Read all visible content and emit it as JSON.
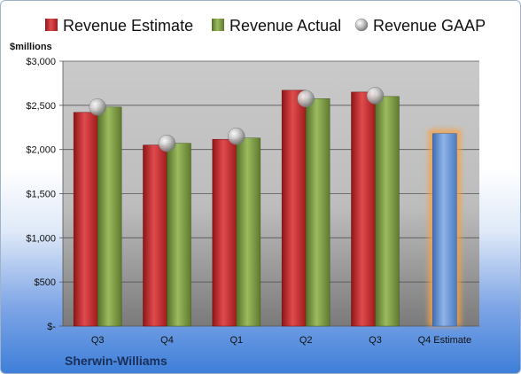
{
  "chart_data": {
    "type": "bar",
    "title": "",
    "company": "Sherwin-Williams",
    "ylabel": "$millions",
    "ylim": [
      0,
      3000
    ],
    "y_ticks": [
      0,
      500,
      1000,
      1500,
      2000,
      2500,
      3000
    ],
    "y_tick_labels": [
      "$-",
      "$500",
      "$1,000",
      "$1,500",
      "$2,000",
      "$2,500",
      "$3,000"
    ],
    "categories": [
      "Q3",
      "Q4",
      "Q1",
      "Q2",
      "Q3",
      "Q4 Estimate"
    ],
    "grid": true,
    "legend_placement": "top",
    "series": [
      {
        "name": "Revenue Estimate",
        "kind": "bar",
        "color": "#c0282a",
        "values": [
          2420,
          2050,
          2115,
          2670,
          2650,
          null
        ]
      },
      {
        "name": "Revenue Actual",
        "kind": "bar",
        "color": "#76933c",
        "values": [
          2480,
          2070,
          2130,
          2575,
          2600,
          null
        ]
      },
      {
        "name": "Revenue GAAP",
        "kind": "marker",
        "color": "#b8b8b8",
        "values": [
          2480,
          2070,
          2150,
          2575,
          2610,
          null
        ]
      },
      {
        "name": "Q4 Estimate",
        "kind": "bar",
        "color": "#6a96d6",
        "highlight": "#f5a24a",
        "values": [
          null,
          null,
          null,
          null,
          null,
          2180
        ]
      }
    ]
  }
}
